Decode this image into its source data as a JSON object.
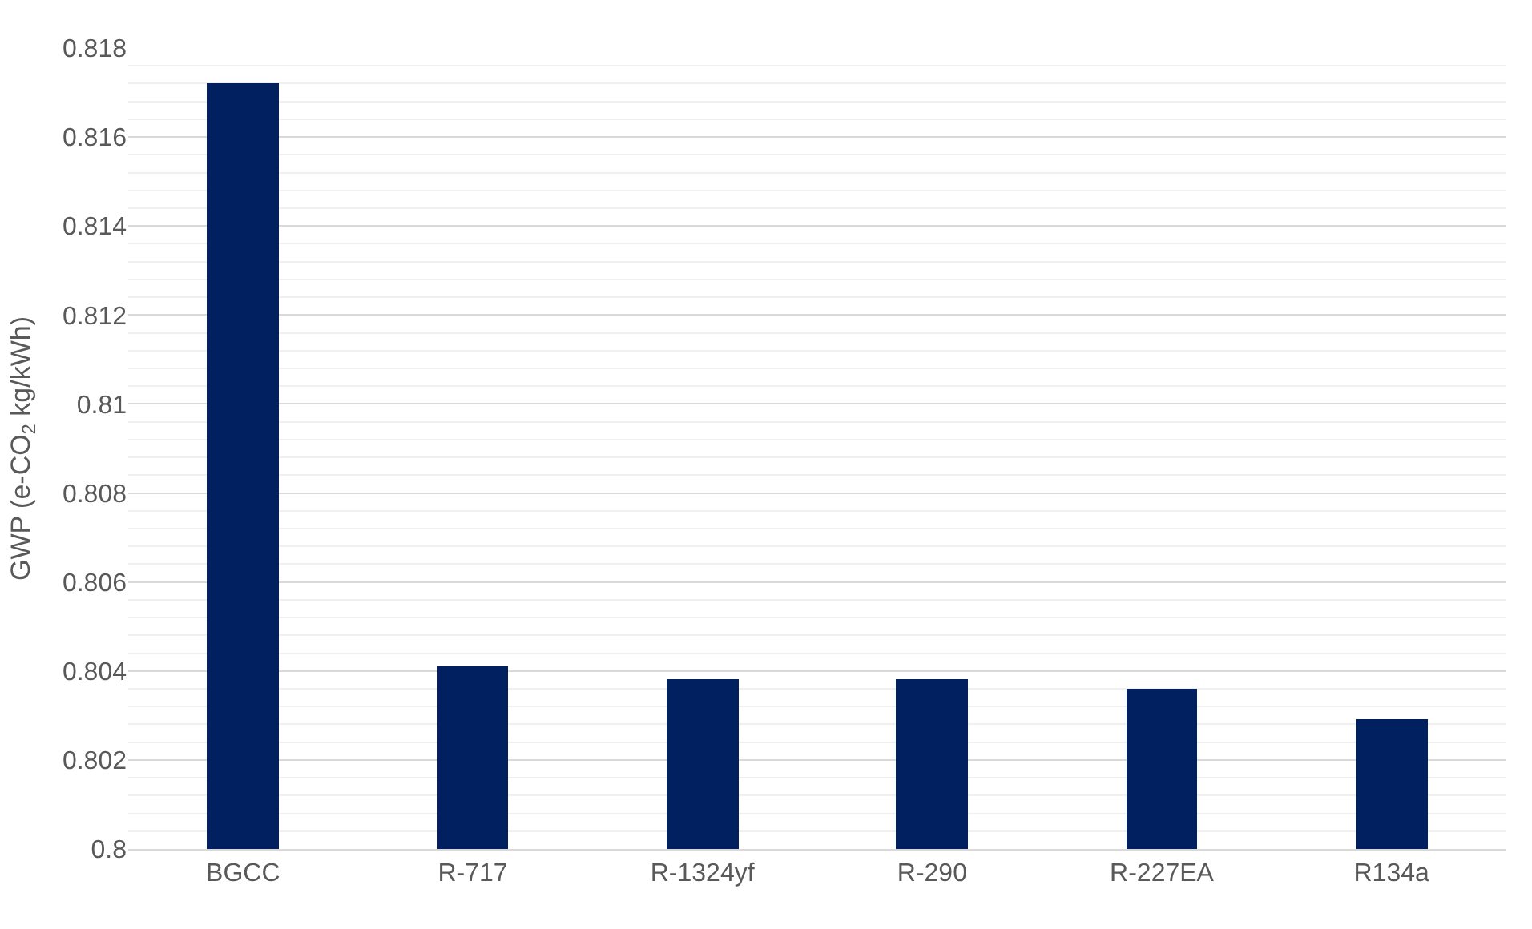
{
  "chart_data": {
    "type": "bar",
    "ylabel": "GWP (e-CO$_{2}$ kg/kWh)",
    "categories": [
      "BGCC",
      "R-717",
      "R-1324yf",
      "R-290",
      "R-227EA",
      "R134a"
    ],
    "values": [
      0.8172,
      0.8041,
      0.8038,
      0.8038,
      0.8036,
      0.8029
    ],
    "color": "#002060",
    "ylim": [
      0.8,
      0.818
    ],
    "yticks": [
      {
        "value": 0.8,
        "label": "0.8"
      },
      0.802,
      0.804,
      0.806,
      0.808,
      {
        "value": 0.81,
        "label": "0.81"
      },
      0.812,
      0.814,
      0.816,
      0.818
    ],
    "grid": "y"
  }
}
